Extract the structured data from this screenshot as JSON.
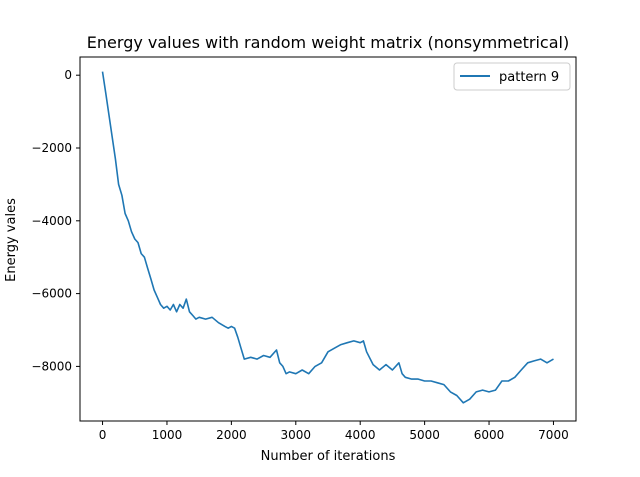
{
  "chart_data": {
    "type": "line",
    "title": "Energy values with random weight matrix (nonsymmetrical)",
    "xlabel": "Number of iterations",
    "ylabel": "Energy vales",
    "xlim": [
      -350,
      7350
    ],
    "ylim": [
      -9500,
      500
    ],
    "xticks": [
      0,
      1000,
      2000,
      3000,
      4000,
      5000,
      6000,
      7000
    ],
    "yticks": [
      0,
      -2000,
      -4000,
      -6000,
      -8000
    ],
    "grid": false,
    "legend_position": "top-right",
    "series": [
      {
        "name": "pattern 9",
        "color": "#1f77b4",
        "x": [
          0,
          50,
          100,
          150,
          200,
          250,
          300,
          350,
          400,
          450,
          500,
          550,
          600,
          650,
          700,
          750,
          800,
          850,
          900,
          950,
          1000,
          1050,
          1100,
          1150,
          1200,
          1250,
          1300,
          1350,
          1400,
          1450,
          1500,
          1600,
          1700,
          1800,
          1900,
          1950,
          2000,
          2050,
          2100,
          2150,
          2200,
          2300,
          2400,
          2500,
          2600,
          2700,
          2750,
          2800,
          2850,
          2900,
          3000,
          3100,
          3200,
          3300,
          3400,
          3500,
          3600,
          3700,
          3800,
          3900,
          4000,
          4050,
          4100,
          4200,
          4300,
          4400,
          4500,
          4600,
          4650,
          4700,
          4800,
          4900,
          5000,
          5100,
          5200,
          5300,
          5400,
          5500,
          5600,
          5700,
          5800,
          5900,
          6000,
          6100,
          6200,
          6300,
          6400,
          6500,
          6600,
          6700,
          6800,
          6900,
          7000
        ],
        "y": [
          100,
          -500,
          -1100,
          -1700,
          -2300,
          -3000,
          -3300,
          -3800,
          -4000,
          -4300,
          -4500,
          -4600,
          -4900,
          -5000,
          -5300,
          -5600,
          -5900,
          -6100,
          -6300,
          -6400,
          -6350,
          -6450,
          -6300,
          -6500,
          -6300,
          -6400,
          -6150,
          -6500,
          -6600,
          -6700,
          -6650,
          -6700,
          -6650,
          -6800,
          -6900,
          -6950,
          -6900,
          -6950,
          -7200,
          -7500,
          -7800,
          -7750,
          -7800,
          -7700,
          -7750,
          -7550,
          -7900,
          -8000,
          -8200,
          -8150,
          -8200,
          -8100,
          -8200,
          -8000,
          -7900,
          -7600,
          -7500,
          -7400,
          -7350,
          -7300,
          -7350,
          -7300,
          -7600,
          -7950,
          -8100,
          -7950,
          -8100,
          -7900,
          -8200,
          -8300,
          -8350,
          -8350,
          -8400,
          -8400,
          -8450,
          -8500,
          -8700,
          -8800,
          -9000,
          -8900,
          -8700,
          -8650,
          -8700,
          -8650,
          -8400,
          -8400,
          -8300,
          -8100,
          -7900,
          -7850,
          -7800,
          -7900,
          -7800
        ]
      }
    ]
  }
}
